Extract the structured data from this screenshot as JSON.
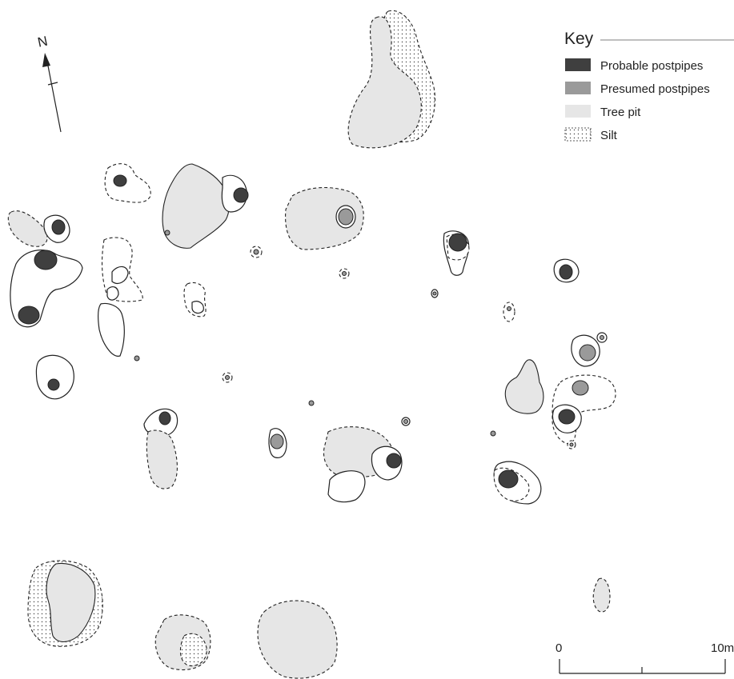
{
  "north": {
    "label": "N"
  },
  "legend": {
    "title": "Key",
    "items": [
      {
        "id": "probable",
        "label": "Probable postpipes",
        "fill": "#3f3f3f"
      },
      {
        "id": "presumed",
        "label": "Presumed postpipes",
        "fill": "#9a9a9a"
      },
      {
        "id": "tree",
        "label": "Tree pit",
        "fill": "#e6e6e6"
      },
      {
        "id": "silt",
        "label": "Silt",
        "fill": "pattern"
      }
    ]
  },
  "scale": {
    "start_label": "0",
    "end_label": "10m"
  },
  "colors": {
    "probable": "#3f3f3f",
    "presumed": "#9a9a9a",
    "tree_pit": "#e6e6e6",
    "ink": "#222222"
  }
}
